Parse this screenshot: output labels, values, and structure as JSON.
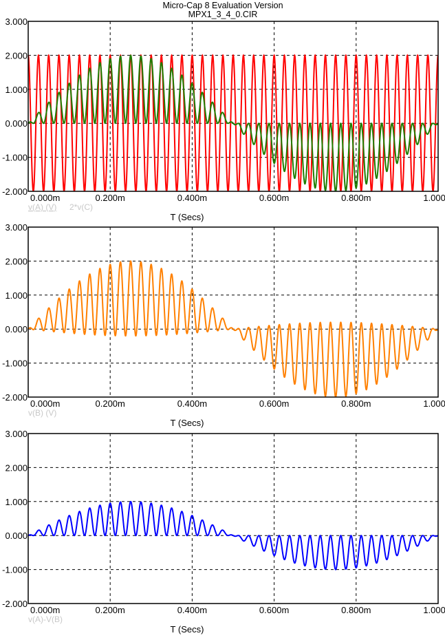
{
  "header": {
    "title": "Micro-Cap 8 Evaluation Version",
    "filename": "MPX1_3_4_0.CIR"
  },
  "chart_data": [
    {
      "type": "line",
      "xlabel": "T (Secs)",
      "xlim": [
        0,
        0.001
      ],
      "ylim": [
        -2,
        3
      ],
      "xtick_labels": [
        "0.000m",
        "0.200m",
        "0.400m",
        "0.600m",
        "0.800m",
        "1.000m"
      ],
      "ytick_labels": [
        "3.000",
        "2.000",
        "1.000",
        "0.000",
        "-1.000",
        "-2.000"
      ],
      "grid": true,
      "legend": [
        "v(A) (V)",
        "2*v(C)"
      ],
      "series": [
        {
          "name": "v(A) (V)",
          "color": "#ff0000",
          "formula": "carrier",
          "amplitude": 2,
          "carrier_hz": 40000
        },
        {
          "name": "2*v(C)",
          "color": "#1e7d00",
          "formula": "mod_times_1pluscos",
          "amplitude": 1,
          "mod_hz": 1000,
          "carrier_hz": 40000
        }
      ]
    },
    {
      "type": "line",
      "xlabel": "T (Secs)",
      "xlim": [
        0,
        0.001
      ],
      "ylim": [
        -2,
        3
      ],
      "xtick_labels": [
        "0.000m",
        "0.200m",
        "0.400m",
        "0.600m",
        "0.800m",
        "1.000m"
      ],
      "ytick_labels": [
        "3.000",
        "2.000",
        "1.000",
        "0.000",
        "-1.000",
        "-2.000"
      ],
      "grid": true,
      "legend": [
        "v(B) (V)"
      ],
      "series": [
        {
          "name": "v(B) (V)",
          "color": "#ff8000",
          "formula": "mod_times_offsetcos",
          "offset": 0.9,
          "gain": 1.1,
          "mod_hz": 1000,
          "carrier_hz": 40000
        }
      ]
    },
    {
      "type": "line",
      "xlabel": "T (Secs)",
      "xlim": [
        0,
        0.001
      ],
      "ylim": [
        -2,
        3
      ],
      "xtick_labels": [
        "0.000m",
        "0.200m",
        "0.400m",
        "0.600m",
        "0.800m",
        "1.000m"
      ],
      "ytick_labels": [
        "3.000",
        "2.000",
        "1.000",
        "0.000",
        "-1.000",
        "-2.000"
      ],
      "grid": true,
      "legend": [
        "v(A)-V(B)"
      ],
      "series": [
        {
          "name": "v(A)-V(B)",
          "color": "#0000ff",
          "formula": "mod_times_1pluscos",
          "amplitude": 0.5,
          "mod_hz": 1000,
          "carrier_hz": 40000
        }
      ]
    }
  ]
}
